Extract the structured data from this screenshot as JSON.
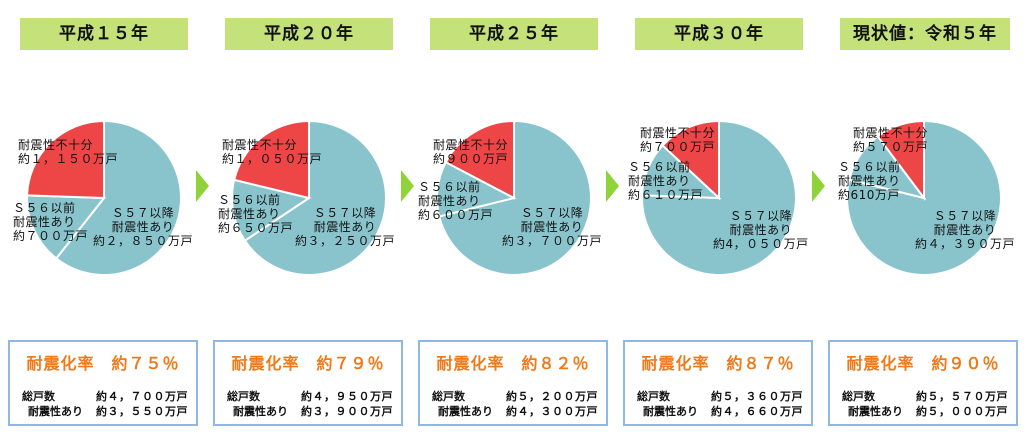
{
  "colors": {
    "safe": "#89c4cd",
    "unsafe": "#ee4646",
    "tag": "#c5e17a",
    "rate": "#f07a1a",
    "box_border": "#8fb8e8",
    "arrow": "#8fd23a"
  },
  "labels": {
    "total": "総戸数",
    "earthquake_resistant": "耐震性あり"
  },
  "chart_data": [
    {
      "type": "pie",
      "title": "平成１５年",
      "unit": "万戸",
      "segments": [
        {
          "name": "Ｓ５７以降 耐震性あり",
          "value": 2850,
          "label": "Ｓ５７以降\n耐震性あり\n約２，８５０万戸"
        },
        {
          "name": "Ｓ５６以前 耐震性あり",
          "value": 700,
          "label": "Ｓ５６以前\n耐震性あり\n約７００万戸"
        },
        {
          "name": "耐震性不十分",
          "value": 1150,
          "label": "耐震性不十分\n約１，１５０万戸"
        }
      ],
      "rate_label": "耐震化率　約７５％",
      "rate": 75,
      "total": "約４，７００万戸",
      "resistant": "約３，５５０万戸"
    },
    {
      "type": "pie",
      "title": "平成２０年",
      "unit": "万戸",
      "segments": [
        {
          "name": "Ｓ５７以降 耐震性あり",
          "value": 3250,
          "label": "Ｓ５７以降\n耐震性あり\n約３，２５０万戸"
        },
        {
          "name": "Ｓ５６以前 耐震性あり",
          "value": 650,
          "label": "Ｓ５６以前\n耐震性あり\n約６５０万戸"
        },
        {
          "name": "耐震性不十分",
          "value": 1050,
          "label": "耐震性不十分\n約１，０５０万戸"
        }
      ],
      "rate_label": "耐震化率　約７９％",
      "rate": 79,
      "total": "約４，９５０万戸",
      "resistant": "約３，９００万戸"
    },
    {
      "type": "pie",
      "title": "平成２５年",
      "unit": "万戸",
      "segments": [
        {
          "name": "Ｓ５７以降 耐震性あり",
          "value": 3700,
          "label": "Ｓ５７以降\n耐震性あり\n約３，７００万戸"
        },
        {
          "name": "Ｓ５６以前 耐震性あり",
          "value": 600,
          "label": "Ｓ５６以前\n耐震性あり\n約６００万戸"
        },
        {
          "name": "耐震性不十分",
          "value": 900,
          "label": "耐震性不十分\n約９００万戸"
        }
      ],
      "rate_label": "耐震化率　約８２％",
      "rate": 82,
      "total": "約５，２００万戸",
      "resistant": "約４，３００万戸"
    },
    {
      "type": "pie",
      "title": "平成３０年",
      "unit": "万戸",
      "segments": [
        {
          "name": "Ｓ５７以降 耐震性あり",
          "value": 4050,
          "label": "Ｓ５７以降\n耐震性あり\n約4，０５０万戸"
        },
        {
          "name": "Ｓ５６以前 耐震性あり",
          "value": 610,
          "label": "Ｓ５６以前\n耐震性あり\n約６１０万戸"
        },
        {
          "name": "耐震性不十分",
          "value": 700,
          "label": "耐震性不十分\n約７００万戸"
        }
      ],
      "rate_label": "耐震化率　約８７％",
      "rate": 87,
      "total": "約５，３６０万戸",
      "resistant": "約４，６６０万戸"
    },
    {
      "type": "pie",
      "title": "現状値：令和５年",
      "unit": "万戸",
      "segments": [
        {
          "name": "Ｓ５７以降 耐震性あり",
          "value": 4390,
          "label": "Ｓ５７以降\n耐震性あり\n約４，３９０万戸"
        },
        {
          "name": "Ｓ５６以前 耐震性あり",
          "value": 610,
          "label": "Ｓ５６以前\n耐震性あり\n約610万戸"
        },
        {
          "name": "耐震性不十分",
          "value": 570,
          "label": "耐震性不十分\n約５７０万戸"
        }
      ],
      "rate_label": "耐震化率　約９０％",
      "rate": 90,
      "total": "約５，５７０万戸",
      "resistant": "約５，０００万戸"
    }
  ]
}
